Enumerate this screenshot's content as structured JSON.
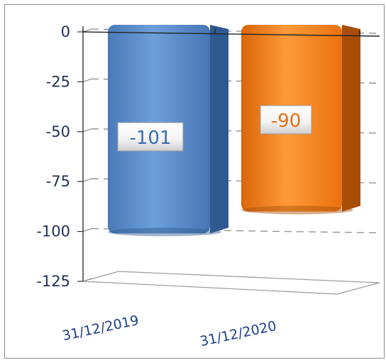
{
  "chart_data": {
    "type": "bar",
    "categories": [
      "31/12/2019",
      "31/12/2020"
    ],
    "values": [
      -101,
      -90
    ],
    "data_labels": [
      "-101",
      "-90"
    ],
    "bar_colors": [
      "#4f81bd",
      "#e8700e"
    ],
    "label_colors": [
      "#3a6fb4",
      "#e8700e"
    ],
    "ylim": [
      -125,
      0
    ],
    "yticks": [
      0,
      -25,
      -50,
      -75,
      -100,
      -125
    ],
    "ytick_labels": [
      "0",
      "-25",
      "-50",
      "-75",
      "-100",
      "-125"
    ],
    "grid": true,
    "style": "3d-column",
    "title": "",
    "xlabel": "",
    "ylabel": ""
  }
}
